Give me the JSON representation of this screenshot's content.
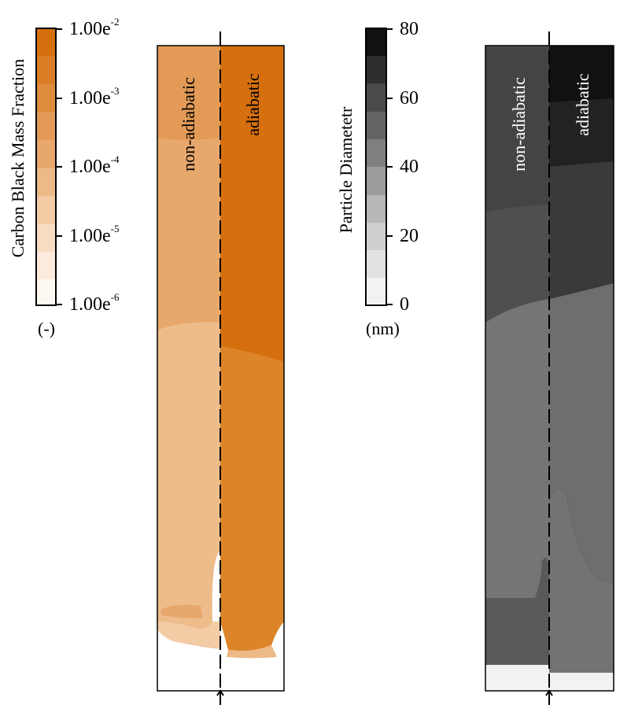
{
  "carbon_colorbar": {
    "title": "Carbon Black Mass Fraction",
    "unit": "(-)",
    "ticks": [
      {
        "base": "1.00e",
        "exp": "-2"
      },
      {
        "base": "1.00e",
        "exp": "-3"
      },
      {
        "base": "1.00e",
        "exp": "-4"
      },
      {
        "base": "1.00e",
        "exp": "-5"
      },
      {
        "base": "1.00e",
        "exp": "-6"
      }
    ],
    "scale": "log",
    "levels": 10,
    "colors": [
      "#fef8f3",
      "#fcebdc",
      "#f8dcc2",
      "#f3cba5",
      "#edb987",
      "#e8a86c",
      "#e39a57",
      "#df8c3e",
      "#da7e26",
      "#d56f0e"
    ]
  },
  "diameter_colorbar": {
    "title": "Particle Diametetr",
    "unit": "(nm)",
    "ticks": [
      "80",
      "60",
      "40",
      "20",
      "0"
    ],
    "range": [
      0,
      80
    ],
    "levels": 10,
    "colors": [
      "#f2f2f2",
      "#e2e2e2",
      "#cfcfcf",
      "#b8b8b8",
      "#9c9c9c",
      "#7f7f7f",
      "#646464",
      "#4a4a4a",
      "#2e2e2e",
      "#111111"
    ]
  },
  "carbon_panel": {
    "left_label": "non-adiabatic",
    "right_label": "adiabatic"
  },
  "diameter_panel": {
    "left_label": "non-adiabatic",
    "right_label": "adiabatic"
  }
}
